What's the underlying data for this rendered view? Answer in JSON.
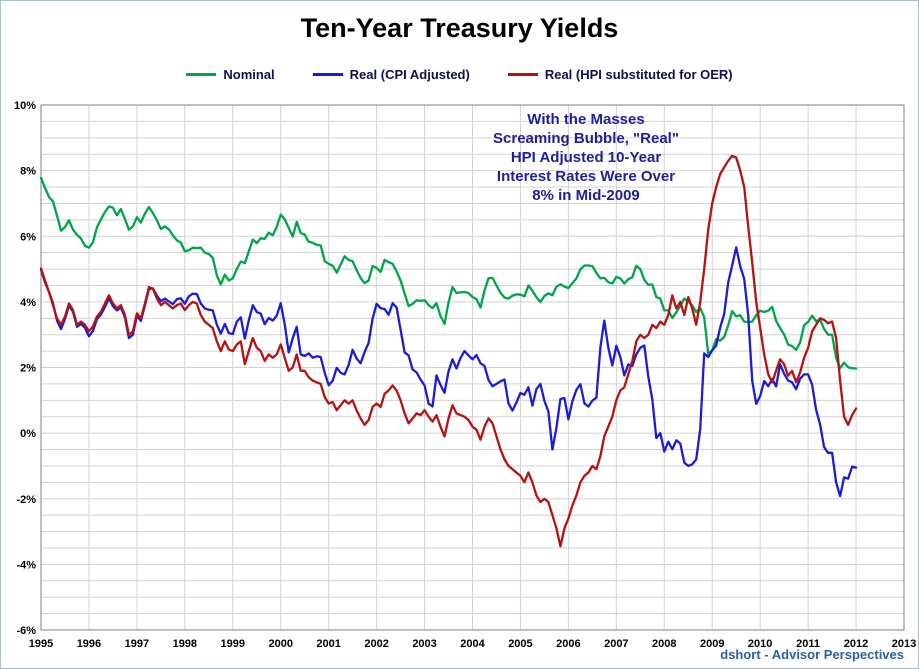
{
  "chart_data": {
    "type": "line",
    "title": "Ten-Year Treasury Yields",
    "footer": "dshort - Advisor Perspectives",
    "footer_color": "#2d5fa6",
    "annotation_lines": [
      "With the Masses",
      "Screaming Bubble, \"Real\"",
      "HPI Adjusted 10-Year",
      "Interest Rates Were Over",
      "8% in Mid-2009"
    ],
    "annotation_color": "#1f1f9c",
    "grid_color": "#d2d2d2",
    "plot_border_color": "#7f7f7f",
    "x_axis": {
      "min": 1995,
      "max": 2013,
      "tick_labels": [
        "1995",
        "1996",
        "1997",
        "1998",
        "1999",
        "2000",
        "2001",
        "2002",
        "2003",
        "2004",
        "2005",
        "2006",
        "2007",
        "2008",
        "2009",
        "2010",
        "2011",
        "2012",
        "2013"
      ]
    },
    "y_axis": {
      "min": -6,
      "max": 10,
      "minor_step": 0.5,
      "tick_values": [
        10,
        8,
        6,
        4,
        2,
        0,
        -2,
        -4,
        -6
      ],
      "tick_labels": [
        "10%",
        "8%",
        "6%",
        "4%",
        "2%",
        "0%",
        "-2%",
        "-4%",
        "-6%"
      ]
    },
    "start_year": 1995,
    "points_per_year": 12,
    "series": [
      {
        "name": "Nominal",
        "color": "#00a44a",
        "values": [
          7.78,
          7.47,
          7.2,
          7.06,
          6.63,
          6.17,
          6.28,
          6.49,
          6.2,
          6.04,
          5.93,
          5.71,
          5.65,
          5.81,
          6.27,
          6.51,
          6.74,
          6.91,
          6.87,
          6.64,
          6.83,
          6.53,
          6.2,
          6.3,
          6.58,
          6.42,
          6.69,
          6.89,
          6.71,
          6.49,
          6.22,
          6.3,
          6.21,
          6.03,
          5.88,
          5.81,
          5.54,
          5.57,
          5.65,
          5.64,
          5.65,
          5.5,
          5.46,
          5.34,
          4.81,
          4.53,
          4.83,
          4.65,
          4.72,
          5.0,
          5.23,
          5.18,
          5.54,
          5.9,
          5.79,
          5.94,
          5.92,
          6.11,
          6.03,
          6.28,
          6.66,
          6.52,
          6.26,
          5.99,
          6.44,
          6.1,
          6.05,
          5.83,
          5.8,
          5.74,
          5.72,
          5.24,
          5.16,
          5.1,
          4.89,
          5.14,
          5.39,
          5.28,
          5.24,
          4.97,
          4.73,
          4.57,
          4.65,
          5.09,
          5.04,
          4.91,
          5.28,
          5.21,
          5.16,
          4.93,
          4.65,
          4.26,
          3.87,
          3.94,
          4.05,
          4.03,
          4.05,
          3.9,
          3.81,
          3.96,
          3.57,
          3.33,
          3.98,
          4.45,
          4.27,
          4.29,
          4.3,
          4.27,
          4.15,
          4.08,
          3.83,
          4.35,
          4.72,
          4.73,
          4.5,
          4.28,
          4.13,
          4.1,
          4.19,
          4.23,
          4.22,
          4.17,
          4.5,
          4.34,
          4.14,
          4.0,
          4.18,
          4.26,
          4.2,
          4.46,
          4.54,
          4.47,
          4.42,
          4.57,
          4.72,
          4.99,
          5.11,
          5.11,
          5.09,
          4.88,
          4.72,
          4.73,
          4.6,
          4.56,
          4.76,
          4.72,
          4.56,
          4.69,
          4.75,
          5.1,
          5.0,
          4.67,
          4.52,
          4.53,
          4.15,
          4.1,
          3.74,
          3.74,
          3.51,
          3.68,
          3.88,
          4.1,
          4.01,
          3.89,
          3.69,
          3.81,
          3.53,
          2.42,
          2.52,
          2.87,
          2.82,
          2.93,
          3.29,
          3.72,
          3.56,
          3.59,
          3.4,
          3.39,
          3.4,
          3.59,
          3.73,
          3.69,
          3.73,
          3.85,
          3.42,
          3.2,
          3.01,
          2.7,
          2.65,
          2.54,
          2.76,
          3.29,
          3.39,
          3.58,
          3.41,
          3.46,
          3.17,
          3.0,
          3.0,
          2.3,
          1.98,
          2.15,
          2.01,
          1.98,
          1.97
        ]
      },
      {
        "name": "Real (CPI Adjusted)",
        "color": "#1c1cd8",
        "values": [
          4.98,
          4.6,
          4.3,
          3.96,
          3.43,
          3.17,
          3.48,
          3.89,
          3.7,
          3.24,
          3.33,
          3.21,
          2.95,
          3.11,
          3.47,
          3.61,
          3.84,
          4.11,
          3.87,
          3.74,
          3.83,
          3.53,
          2.9,
          3.0,
          3.58,
          3.42,
          3.89,
          4.39,
          4.41,
          4.19,
          4.02,
          4.1,
          4.01,
          3.93,
          4.08,
          4.11,
          3.94,
          4.17,
          4.25,
          4.24,
          3.95,
          3.8,
          3.76,
          3.74,
          3.31,
          3.03,
          3.33,
          3.05,
          3.02,
          3.4,
          3.53,
          2.88,
          3.44,
          3.9,
          3.69,
          3.64,
          3.32,
          3.51,
          3.43,
          3.58,
          3.96,
          3.32,
          2.46,
          2.89,
          3.24,
          2.4,
          2.35,
          2.43,
          2.3,
          2.34,
          2.32,
          1.84,
          1.46,
          1.6,
          1.99,
          1.84,
          1.79,
          2.08,
          2.54,
          2.27,
          2.13,
          2.47,
          2.75,
          3.49,
          3.94,
          3.81,
          3.78,
          3.61,
          3.96,
          3.83,
          3.15,
          2.46,
          2.37,
          1.94,
          1.85,
          1.63,
          1.45,
          0.9,
          0.81,
          1.76,
          1.47,
          1.23,
          1.88,
          2.25,
          1.97,
          2.29,
          2.5,
          2.37,
          2.25,
          2.38,
          2.13,
          2.05,
          1.62,
          1.43,
          1.5,
          1.58,
          1.63,
          0.9,
          0.69,
          0.93,
          1.22,
          1.17,
          1.4,
          0.84,
          1.34,
          1.5,
          0.98,
          0.66,
          -0.5,
          0.16,
          1.04,
          1.07,
          0.42,
          0.97,
          1.32,
          1.49,
          0.91,
          0.81,
          0.99,
          1.08,
          2.62,
          3.43,
          2.6,
          2.06,
          2.66,
          2.32,
          1.76,
          2.09,
          2.05,
          2.4,
          2.6,
          2.67,
          1.72,
          1.03,
          -0.15,
          0.0,
          -0.56,
          -0.26,
          -0.49,
          -0.22,
          -0.32,
          -0.9,
          -1.0,
          -0.95,
          -0.8,
          0.11,
          2.43,
          2.32,
          2.52,
          2.67,
          3.22,
          3.63,
          4.59,
          5.12,
          5.66,
          5.09,
          4.7,
          3.59,
          1.6,
          0.89,
          1.13,
          1.59,
          1.43,
          1.65,
          1.42,
          2.1,
          1.81,
          1.6,
          1.55,
          1.34,
          1.66,
          1.79,
          1.79,
          1.48,
          0.71,
          0.26,
          -0.43,
          -0.6,
          -0.6,
          -1.5,
          -1.92,
          -1.35,
          -1.39,
          -1.02,
          -1.05
        ]
      },
      {
        "name": "Real (HPI substituted for OER)",
        "color": "#b51212",
        "values": [
          5.02,
          4.65,
          4.3,
          3.9,
          3.5,
          3.3,
          3.55,
          3.95,
          3.75,
          3.3,
          3.4,
          3.3,
          3.1,
          3.25,
          3.55,
          3.7,
          3.95,
          4.2,
          3.95,
          3.8,
          3.9,
          3.6,
          3.0,
          3.1,
          3.65,
          3.5,
          3.95,
          4.45,
          4.4,
          4.1,
          3.9,
          4.0,
          3.9,
          3.8,
          3.9,
          3.95,
          3.75,
          3.9,
          4.0,
          3.95,
          3.6,
          3.4,
          3.3,
          3.2,
          2.8,
          2.5,
          2.8,
          2.55,
          2.5,
          2.7,
          2.8,
          2.1,
          2.5,
          2.9,
          2.6,
          2.5,
          2.2,
          2.4,
          2.3,
          2.4,
          2.7,
          2.3,
          1.9,
          2.0,
          2.4,
          1.9,
          1.9,
          1.7,
          1.6,
          1.55,
          1.5,
          1.1,
          0.9,
          0.95,
          0.7,
          0.85,
          1.0,
          0.9,
          1.0,
          0.7,
          0.45,
          0.25,
          0.4,
          0.8,
          0.9,
          0.8,
          1.2,
          1.3,
          1.45,
          1.3,
          1.0,
          0.6,
          0.3,
          0.45,
          0.6,
          0.55,
          0.7,
          0.5,
          0.35,
          0.55,
          0.2,
          -0.1,
          0.45,
          0.85,
          0.6,
          0.55,
          0.5,
          0.4,
          0.2,
          0.1,
          -0.2,
          0.2,
          0.45,
          0.3,
          -0.1,
          -0.5,
          -0.8,
          -1.0,
          -1.1,
          -1.2,
          -1.3,
          -1.5,
          -1.2,
          -1.5,
          -1.9,
          -2.1,
          -2.0,
          -2.1,
          -2.5,
          -2.9,
          -3.45,
          -2.9,
          -2.6,
          -2.2,
          -1.9,
          -1.5,
          -1.3,
          -1.2,
          -1.0,
          -1.1,
          -0.7,
          -0.1,
          0.2,
          0.5,
          1.0,
          1.3,
          1.4,
          1.8,
          2.2,
          2.8,
          3.0,
          2.9,
          3.0,
          3.3,
          3.2,
          3.4,
          3.3,
          3.6,
          4.2,
          3.8,
          4.0,
          3.6,
          4.15,
          3.8,
          3.3,
          4.0,
          5.0,
          6.2,
          7.0,
          7.5,
          7.9,
          8.1,
          8.3,
          8.45,
          8.4,
          8.0,
          7.5,
          6.3,
          5.2,
          4.0,
          3.2,
          2.4,
          1.8,
          1.55,
          1.9,
          2.25,
          2.1,
          1.75,
          1.9,
          1.55,
          1.85,
          2.3,
          2.6,
          3.1,
          3.3,
          3.5,
          3.45,
          3.35,
          3.4,
          2.9,
          1.6,
          0.5,
          0.25,
          0.55,
          0.75
        ]
      }
    ]
  }
}
